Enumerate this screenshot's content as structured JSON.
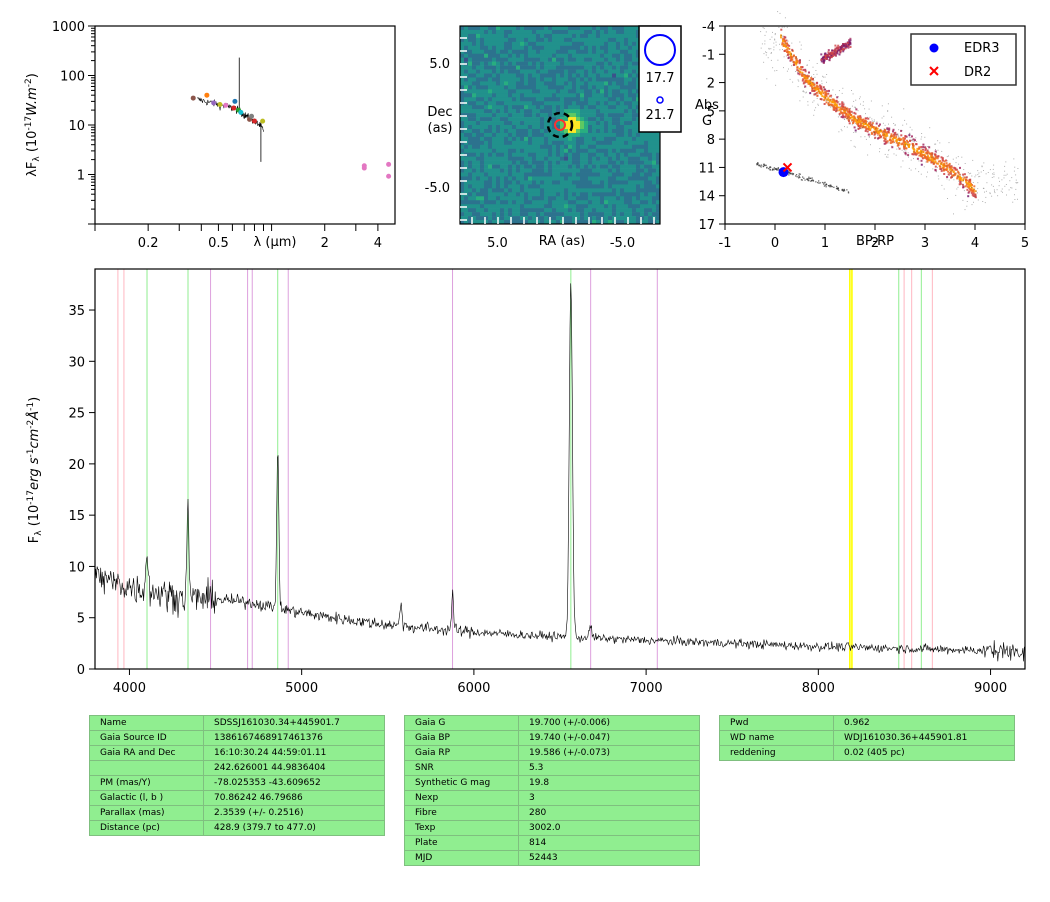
{
  "chart_data": [
    {
      "type": "scatter",
      "panel": "sed",
      "xlabel": "λ (μm)",
      "ylabel": "λF_λ (10^-17 W.m^-2)",
      "xscale": "log",
      "yscale": "log",
      "xlim": [
        0.1,
        5.0
      ],
      "ylim": [
        0.1,
        1000
      ],
      "xticks": [
        {
          "v": 0.2,
          "l": "0.2"
        },
        {
          "v": 0.5,
          "l": "0.5"
        },
        {
          "v": 2,
          "l": "2"
        },
        {
          "v": 4,
          "l": "4"
        }
      ],
      "yticks": [
        {
          "v": 1,
          "l": "1"
        },
        {
          "v": 10,
          "l": "10"
        },
        {
          "v": 100,
          "l": "100"
        },
        {
          "v": 1000,
          "l": "1000"
        }
      ],
      "points": [
        {
          "x": 0.36,
          "y": 35,
          "color": "#8c564b"
        },
        {
          "x": 0.43,
          "y": 40,
          "color": "#ff7f0e"
        },
        {
          "x": 0.47,
          "y": 28,
          "color": "#9467bd"
        },
        {
          "x": 0.51,
          "y": 26,
          "color": "#bcbd22"
        },
        {
          "x": 0.55,
          "y": 25,
          "color": "#e377c2"
        },
        {
          "x": 0.61,
          "y": 22,
          "color": "#d62728"
        },
        {
          "x": 0.62,
          "y": 30,
          "color": "#1f77b4"
        },
        {
          "x": 0.65,
          "y": 20,
          "color": "#2ca02c"
        },
        {
          "x": 0.67,
          "y": 18,
          "color": "#17becf"
        },
        {
          "x": 0.75,
          "y": 13,
          "color": "#8c564b"
        },
        {
          "x": 0.77,
          "y": 15,
          "color": "#7f7f7f"
        },
        {
          "x": 0.8,
          "y": 12,
          "color": "#d62728"
        },
        {
          "x": 0.89,
          "y": 12,
          "color": "#bcbd22"
        },
        {
          "x": 3.35,
          "y": 1.5,
          "color": "#e377c2"
        },
        {
          "x": 3.35,
          "y": 1.35,
          "color": "#e377c2"
        },
        {
          "x": 4.6,
          "y": 1.6,
          "color": "#e377c2"
        },
        {
          "x": 4.6,
          "y": 0.92,
          "color": "#e377c2"
        }
      ],
      "spectrum_line": [
        [
          0.38,
          33
        ],
        [
          0.42,
          30
        ],
        [
          0.46,
          28
        ],
        [
          0.5,
          26
        ],
        [
          0.55,
          24
        ],
        [
          0.6,
          22
        ],
        [
          0.65,
          20
        ],
        [
          0.7,
          16
        ],
        [
          0.75,
          14
        ],
        [
          0.8,
          12
        ],
        [
          0.85,
          10
        ],
        [
          0.9,
          8
        ]
      ]
    },
    {
      "type": "heatmap",
      "panel": "image",
      "xlabel": "RA (as)",
      "ylabel": "Dec (as)",
      "xlim": [
        8.0,
        -8.0
      ],
      "ylim": [
        -8.0,
        8.0
      ],
      "xticks": [
        {
          "v": 5.0,
          "l": "5.0"
        },
        {
          "v": -5.0,
          "l": "-5.0"
        }
      ],
      "yticks": [
        {
          "v": 5.0,
          "l": "5.0"
        },
        {
          "v": -5.0,
          "l": "-5.0"
        }
      ],
      "source_position": [
        -1.0,
        0.0
      ],
      "marker_position": [
        0.0,
        0.0
      ],
      "legend": [
        {
          "label": "17.7"
        },
        {
          "label": "21.7"
        }
      ]
    },
    {
      "type": "scatter",
      "panel": "hrd",
      "xlabel": "BP-RP",
      "ylabel": "Abs G",
      "xlim": [
        -1,
        5
      ],
      "ylim": [
        17,
        -4
      ],
      "xticks": [
        {
          "v": -1,
          "l": "-1"
        },
        {
          "v": 0,
          "l": "0"
        },
        {
          "v": 1,
          "l": "1"
        },
        {
          "v": 2,
          "l": "2"
        },
        {
          "v": 3,
          "l": "3"
        },
        {
          "v": 4,
          "l": "4"
        },
        {
          "v": 5,
          "l": "5"
        }
      ],
      "yticks": [
        {
          "v": -4,
          "l": "-4"
        },
        {
          "v": -1,
          "l": "-1"
        },
        {
          "v": 2,
          "l": "2"
        },
        {
          "v": 5,
          "l": "5"
        },
        {
          "v": 8,
          "l": "8"
        },
        {
          "v": 11,
          "l": "11"
        },
        {
          "v": 14,
          "l": "14"
        },
        {
          "v": 17,
          "l": "17"
        }
      ],
      "series": [
        {
          "name": "EDR3",
          "marker": "circle",
          "color": "#0000ff",
          "points": [
            [
              0.17,
              11.5
            ]
          ]
        },
        {
          "name": "DR2",
          "marker": "x",
          "color": "#ff0000",
          "points": [
            [
              0.25,
              11.0
            ]
          ]
        }
      ],
      "legend_position": "top-right"
    },
    {
      "type": "line",
      "panel": "spectrum",
      "xlabel": "",
      "ylabel": "F_λ (10^-17 erg s^-1 cm^-2 Å^-1)",
      "xlim": [
        3800,
        9200
      ],
      "ylim": [
        0,
        39
      ],
      "xticks": [
        {
          "v": 4000,
          "l": "4000"
        },
        {
          "v": 5000,
          "l": "5000"
        },
        {
          "v": 6000,
          "l": "6000"
        },
        {
          "v": 7000,
          "l": "7000"
        },
        {
          "v": 8000,
          "l": "8000"
        },
        {
          "v": 9000,
          "l": "9000"
        }
      ],
      "yticks": [
        {
          "v": 0,
          "l": "0"
        },
        {
          "v": 5,
          "l": "5"
        },
        {
          "v": 10,
          "l": "10"
        },
        {
          "v": 15,
          "l": "15"
        },
        {
          "v": 20,
          "l": "20"
        },
        {
          "v": 25,
          "l": "25"
        },
        {
          "v": 30,
          "l": "30"
        },
        {
          "v": 35,
          "l": "35"
        }
      ],
      "continuum": [
        [
          3800,
          9
        ],
        [
          4000,
          8
        ],
        [
          4300,
          7
        ],
        [
          4500,
          6.8
        ],
        [
          4700,
          6.5
        ],
        [
          4900,
          5.8
        ],
        [
          5100,
          5.2
        ],
        [
          5400,
          4.5
        ],
        [
          5700,
          4.0
        ],
        [
          6000,
          3.6
        ],
        [
          6300,
          3.3
        ],
        [
          6700,
          3.0
        ],
        [
          7000,
          2.8
        ],
        [
          7500,
          2.5
        ],
        [
          8000,
          2.2
        ],
        [
          8500,
          2.0
        ],
        [
          9000,
          1.8
        ],
        [
          9200,
          1.7
        ]
      ],
      "emission_lines": [
        {
          "x": 4102,
          "peak": 12
        },
        {
          "x": 4340,
          "peak": 15.5
        },
        {
          "x": 4861,
          "peak": 21.5
        },
        {
          "x": 5577,
          "peak": 6.5
        },
        {
          "x": 5876,
          "peak": 7.3
        },
        {
          "x": 6563,
          "peak": 38
        },
        {
          "x": 6678,
          "peak": 4
        }
      ],
      "ref_lines": [
        {
          "x": 3933,
          "color": "#ffb6c1"
        },
        {
          "x": 3968,
          "color": "#ffb6c1"
        },
        {
          "x": 4102,
          "color": "#90ee90"
        },
        {
          "x": 4340,
          "color": "#90ee90"
        },
        {
          "x": 4471,
          "color": "#dda0dd"
        },
        {
          "x": 4686,
          "color": "#dda0dd"
        },
        {
          "x": 4713,
          "color": "#dda0dd"
        },
        {
          "x": 4861,
          "color": "#90ee90"
        },
        {
          "x": 4922,
          "color": "#dda0dd"
        },
        {
          "x": 5876,
          "color": "#dda0dd"
        },
        {
          "x": 6563,
          "color": "#90ee90"
        },
        {
          "x": 6678,
          "color": "#dda0dd"
        },
        {
          "x": 7065,
          "color": "#dda0dd"
        },
        {
          "x": 8183,
          "color": "#ffff00"
        },
        {
          "x": 8195,
          "color": "#ffff00"
        },
        {
          "x": 8467,
          "color": "#90ee90"
        },
        {
          "x": 8498,
          "color": "#ffb6c1"
        },
        {
          "x": 8542,
          "color": "#ffb6c1"
        },
        {
          "x": 8598,
          "color": "#90ee90"
        },
        {
          "x": 8662,
          "color": "#ffb6c1"
        }
      ]
    }
  ],
  "tables": [
    [
      [
        "Name",
        "SDSSJ161030.34+445901.7"
      ],
      [
        "Gaia Source ID",
        "1386167468917461376"
      ],
      [
        "Gaia RA and Dec",
        "16:10:30.24    44:59:01.11"
      ],
      [
        "",
        "242.626001    44.9836404"
      ],
      [
        "PM (mas/Y)",
        "-78.025353    -43.609652"
      ],
      [
        "Galactic (l, b )",
        "70.86242    46.79686"
      ],
      [
        "Parallax (mas)",
        "2.3539 (+/- 0.2516)"
      ],
      [
        "Distance (pc)",
        "428.9 (379.7 to 477.0)"
      ]
    ],
    [
      [
        "Gaia G",
        "19.700 (+/-0.006)"
      ],
      [
        "Gaia BP",
        "19.740 (+/-0.047)"
      ],
      [
        "Gaia RP",
        "19.586 (+/-0.073)"
      ],
      [
        "SNR",
        "5.3"
      ],
      [
        "Synthetic G mag",
        "19.8"
      ],
      [
        "Nexp",
        "3"
      ],
      [
        "Fibre",
        "280"
      ],
      [
        "Texp",
        "3002.0"
      ],
      [
        "Plate",
        "814"
      ],
      [
        "MJD",
        "52443"
      ]
    ],
    [
      [
        "Pwd",
        "0.962"
      ],
      [
        "WD name",
        "WDJ161030.36+445901.81"
      ],
      [
        "reddening",
        "0.02 (405 pc)"
      ]
    ]
  ]
}
